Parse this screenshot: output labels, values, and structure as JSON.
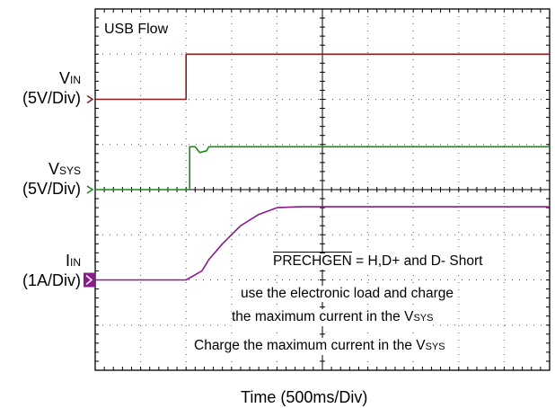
{
  "chart_data": {
    "type": "line",
    "title": "USB Flow",
    "xlabel": "Time (500ms/Div)",
    "x_divisions": 10,
    "y_divisions": 8,
    "grid": true,
    "series": [
      {
        "name": "VIN",
        "name_main": "V",
        "name_sub": "IN",
        "scale": "(5V/Div)",
        "color": "#8b1a1a",
        "ground_div": 6,
        "points": [
          [
            0,
            0
          ],
          [
            2.0,
            0
          ],
          [
            2.0,
            1.0
          ],
          [
            10,
            1.0
          ]
        ]
      },
      {
        "name": "VSYS",
        "name_main": "V",
        "name_sub": "SYS",
        "scale": "(5V/Div)",
        "color": "#1a8a1a",
        "ground_div": 4,
        "points": [
          [
            0,
            0
          ],
          [
            2.08,
            0
          ],
          [
            2.08,
            0.95
          ],
          [
            2.2,
            0.95
          ],
          [
            2.3,
            0.82
          ],
          [
            2.45,
            0.86
          ],
          [
            2.5,
            0.95
          ],
          [
            10,
            0.95
          ]
        ]
      },
      {
        "name": "IIN",
        "name_main": "I",
        "name_sub": "IN",
        "scale": "(1A/Div)",
        "color": "#8b1a8b",
        "ground_div": 2,
        "points": [
          [
            0,
            0
          ],
          [
            2.0,
            0
          ],
          [
            2.35,
            0.2
          ],
          [
            2.5,
            0.45
          ],
          [
            2.8,
            0.8
          ],
          [
            3.2,
            1.2
          ],
          [
            3.6,
            1.45
          ],
          [
            4.0,
            1.6
          ],
          [
            4.5,
            1.62
          ],
          [
            10,
            1.62
          ]
        ]
      }
    ]
  },
  "annotations": {
    "line1_overbar": "PRECHGEN",
    "line1_rest": " = H,D+ and D- Short",
    "line2": "use the electronic load and charge",
    "line3_main": "the maximum current in the V",
    "line3_sub": "SYS",
    "line4_main": "Charge the maximum current in the V",
    "line4_sub": "SYS"
  }
}
